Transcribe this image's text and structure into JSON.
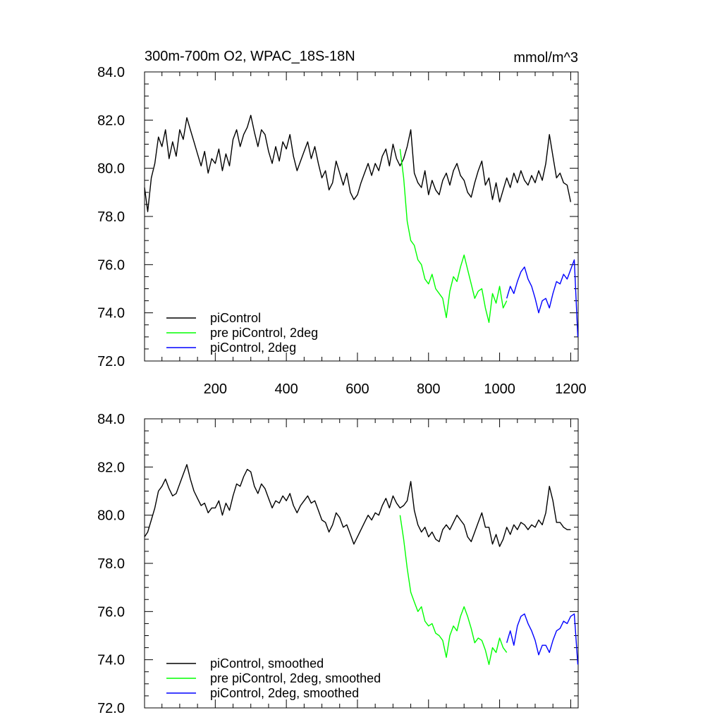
{
  "figure": {
    "title": "300m-700m O2, WPAC_18S-18N",
    "units": "mmol/m^3"
  },
  "chart_data": [
    {
      "type": "line",
      "title": "300m-700m O2, WPAC_18S-18N",
      "units": "mmol/m^3",
      "xlabel": "",
      "ylabel": "",
      "xlim": [
        1,
        1221
      ],
      "ylim": [
        72.0,
        84.0
      ],
      "x_ticks": [
        200,
        400,
        600,
        800,
        1000,
        1200
      ],
      "x_tick_labels": [
        "200",
        "400",
        "600",
        "800",
        "1000",
        "1200"
      ],
      "y_ticks": [
        72.0,
        74.0,
        76.0,
        78.0,
        80.0,
        82.0,
        84.0
      ],
      "y_tick_labels": [
        "72.0",
        "74.0",
        "76.0",
        "78.0",
        "80.0",
        "82.0",
        "84.0"
      ],
      "legend_position": "bottom-left",
      "series": [
        {
          "name": "piControl",
          "color": "#000000",
          "x": [
            1,
            10,
            20,
            30,
            40,
            50,
            60,
            70,
            80,
            90,
            100,
            110,
            120,
            130,
            140,
            150,
            160,
            170,
            180,
            190,
            200,
            210,
            220,
            230,
            240,
            250,
            260,
            270,
            280,
            290,
            300,
            310,
            320,
            330,
            340,
            350,
            360,
            370,
            380,
            390,
            400,
            410,
            420,
            430,
            440,
            450,
            460,
            470,
            480,
            490,
            500,
            510,
            520,
            530,
            540,
            550,
            560,
            570,
            580,
            590,
            600,
            610,
            620,
            630,
            640,
            650,
            660,
            670,
            680,
            690,
            700,
            710,
            720,
            730,
            740,
            750,
            760,
            770,
            780,
            790,
            800,
            810,
            820,
            830,
            840,
            850,
            860,
            870,
            880,
            890,
            900,
            910,
            920,
            930,
            940,
            950,
            960,
            970,
            980,
            990,
            1000,
            1010,
            1020,
            1030,
            1040,
            1050,
            1060,
            1070,
            1080,
            1090,
            1100,
            1110,
            1120,
            1130,
            1140,
            1150,
            1160,
            1170,
            1180,
            1190,
            1200
          ],
          "y": [
            79.2,
            78.2,
            79.6,
            80.2,
            81.3,
            80.9,
            81.6,
            80.4,
            81.1,
            80.5,
            81.6,
            81.2,
            82.1,
            81.6,
            81.1,
            80.6,
            80.1,
            80.7,
            79.8,
            80.4,
            80.2,
            80.8,
            79.9,
            80.6,
            80.1,
            81.2,
            81.6,
            80.9,
            81.4,
            81.7,
            82.2,
            81.5,
            80.9,
            81.6,
            81.4,
            80.7,
            80.2,
            80.9,
            80.3,
            81.1,
            80.8,
            81.4,
            80.5,
            79.9,
            80.3,
            80.7,
            81.1,
            80.4,
            80.9,
            80.2,
            79.6,
            79.9,
            79.1,
            79.4,
            80.3,
            79.8,
            79.3,
            79.8,
            79.0,
            78.7,
            78.9,
            79.4,
            79.8,
            80.2,
            79.7,
            80.2,
            79.9,
            80.5,
            80.8,
            80.1,
            81.0,
            80.4,
            80.1,
            80.4,
            80.9,
            81.6,
            79.8,
            79.4,
            79.2,
            79.9,
            78.9,
            79.5,
            79.1,
            78.9,
            79.5,
            79.8,
            79.3,
            79.9,
            80.2,
            79.7,
            79.5,
            79.0,
            78.8,
            79.4,
            79.9,
            80.3,
            79.3,
            79.6,
            78.7,
            79.4,
            78.6,
            79.1,
            79.6,
            79.2,
            79.8,
            79.4,
            79.9,
            79.5,
            79.3,
            79.7,
            79.4,
            79.9,
            79.5,
            80.2,
            81.4,
            80.5,
            79.6,
            79.8,
            79.4,
            79.3,
            78.6
          ]
        },
        {
          "name": "pre piControl, 2deg",
          "color": "#00ff00",
          "x": [
            720,
            730,
            740,
            750,
            760,
            770,
            780,
            790,
            800,
            810,
            820,
            830,
            840,
            850,
            860,
            870,
            880,
            890,
            900,
            910,
            920,
            930,
            940,
            950,
            960,
            970,
            980,
            990,
            1000,
            1010,
            1020
          ],
          "y": [
            80.8,
            79.6,
            77.8,
            77.0,
            76.8,
            76.2,
            76.0,
            75.4,
            75.2,
            75.6,
            75.0,
            74.8,
            74.6,
            73.8,
            74.9,
            75.5,
            75.3,
            75.9,
            76.4,
            75.8,
            75.2,
            74.6,
            74.9,
            75.0,
            74.2,
            73.6,
            74.8,
            74.4,
            75.1,
            74.2,
            74.5
          ]
        },
        {
          "name": "piControl, 2deg",
          "color": "#0000ff",
          "x": [
            1020,
            1030,
            1040,
            1050,
            1060,
            1070,
            1080,
            1090,
            1100,
            1110,
            1120,
            1130,
            1140,
            1150,
            1160,
            1170,
            1180,
            1190,
            1200,
            1210,
            1220
          ],
          "y": [
            74.6,
            75.1,
            74.8,
            75.3,
            75.7,
            75.9,
            75.4,
            75.1,
            74.6,
            74.0,
            74.5,
            74.6,
            74.2,
            74.8,
            75.3,
            75.2,
            75.6,
            75.4,
            75.8,
            76.2,
            73.0
          ]
        }
      ]
    },
    {
      "type": "line",
      "title": "",
      "xlabel": "",
      "ylabel": "",
      "xlim": [
        1,
        1221
      ],
      "ylim": [
        72.0,
        84.0
      ],
      "y_ticks": [
        72.0,
        74.0,
        76.0,
        78.0,
        80.0,
        82.0,
        84.0
      ],
      "y_tick_labels": [
        "72.0",
        "74.0",
        "76.0",
        "78.0",
        "80.0",
        "82.0",
        "84.0"
      ],
      "legend_position": "bottom-left",
      "series": [
        {
          "name": "piControl, smoothed",
          "color": "#000000",
          "x": [
            1,
            10,
            20,
            30,
            40,
            50,
            60,
            70,
            80,
            90,
            100,
            110,
            120,
            130,
            140,
            150,
            160,
            170,
            180,
            190,
            200,
            210,
            220,
            230,
            240,
            250,
            260,
            270,
            280,
            290,
            300,
            310,
            320,
            330,
            340,
            350,
            360,
            370,
            380,
            390,
            400,
            410,
            420,
            430,
            440,
            450,
            460,
            470,
            480,
            490,
            500,
            510,
            520,
            530,
            540,
            550,
            560,
            570,
            580,
            590,
            600,
            610,
            620,
            630,
            640,
            650,
            660,
            670,
            680,
            690,
            700,
            710,
            720,
            730,
            740,
            750,
            760,
            770,
            780,
            790,
            800,
            810,
            820,
            830,
            840,
            850,
            860,
            870,
            880,
            890,
            900,
            910,
            920,
            930,
            940,
            950,
            960,
            970,
            980,
            990,
            1000,
            1010,
            1020,
            1030,
            1040,
            1050,
            1060,
            1070,
            1080,
            1090,
            1100,
            1110,
            1120,
            1130,
            1140,
            1150,
            1160,
            1170,
            1180,
            1190,
            1200
          ],
          "y": [
            79.1,
            79.3,
            79.8,
            80.3,
            81.0,
            81.2,
            81.5,
            81.1,
            80.8,
            80.9,
            81.3,
            81.7,
            82.1,
            81.5,
            81.0,
            80.7,
            80.4,
            80.5,
            80.1,
            80.3,
            80.3,
            80.6,
            80.0,
            80.5,
            80.2,
            80.8,
            81.3,
            81.2,
            81.6,
            81.9,
            81.8,
            81.2,
            80.9,
            81.3,
            81.1,
            80.7,
            80.3,
            80.6,
            80.5,
            80.8,
            80.6,
            80.9,
            80.4,
            80.1,
            80.4,
            80.6,
            80.8,
            80.5,
            80.6,
            80.2,
            79.8,
            79.7,
            79.3,
            79.6,
            80.1,
            79.9,
            79.5,
            79.6,
            79.2,
            78.8,
            79.1,
            79.4,
            79.7,
            80.0,
            79.8,
            80.1,
            80.0,
            80.4,
            80.7,
            80.3,
            80.8,
            80.5,
            80.3,
            80.4,
            80.6,
            81.4,
            80.2,
            79.6,
            79.3,
            79.5,
            79.1,
            79.3,
            79.0,
            78.9,
            79.4,
            79.6,
            79.4,
            79.7,
            80.0,
            79.8,
            79.6,
            79.1,
            78.9,
            79.3,
            79.7,
            80.1,
            79.5,
            79.5,
            78.8,
            79.2,
            78.7,
            79.0,
            79.5,
            79.2,
            79.6,
            79.4,
            79.7,
            79.6,
            79.4,
            79.6,
            79.5,
            79.8,
            79.6,
            80.1,
            81.2,
            80.6,
            79.7,
            79.7,
            79.5,
            79.4,
            79.4
          ]
        },
        {
          "name": "pre piControl, 2deg, smoothed",
          "color": "#00ff00",
          "x": [
            720,
            730,
            740,
            750,
            760,
            770,
            780,
            790,
            800,
            810,
            820,
            830,
            840,
            850,
            860,
            870,
            880,
            890,
            900,
            910,
            920,
            930,
            940,
            950,
            960,
            970,
            980,
            990,
            1000,
            1010,
            1020
          ],
          "y": [
            80.0,
            79.0,
            77.8,
            76.8,
            76.4,
            76.0,
            76.2,
            75.6,
            75.4,
            75.5,
            75.1,
            75.0,
            74.8,
            74.1,
            75.0,
            75.4,
            75.2,
            75.8,
            76.2,
            75.8,
            75.3,
            74.7,
            74.9,
            74.8,
            74.4,
            73.8,
            74.5,
            74.3,
            74.9,
            74.5,
            74.3
          ]
        },
        {
          "name": "piControl, 2deg, smoothed",
          "color": "#0000ff",
          "x": [
            1020,
            1030,
            1040,
            1050,
            1060,
            1070,
            1080,
            1090,
            1100,
            1110,
            1120,
            1130,
            1140,
            1150,
            1160,
            1170,
            1180,
            1190,
            1200,
            1210,
            1220
          ],
          "y": [
            74.7,
            75.2,
            74.6,
            75.4,
            75.8,
            75.9,
            75.5,
            75.2,
            74.8,
            74.2,
            74.6,
            74.6,
            74.3,
            74.8,
            75.2,
            75.3,
            75.6,
            75.5,
            75.8,
            75.9,
            73.8
          ]
        }
      ]
    }
  ]
}
